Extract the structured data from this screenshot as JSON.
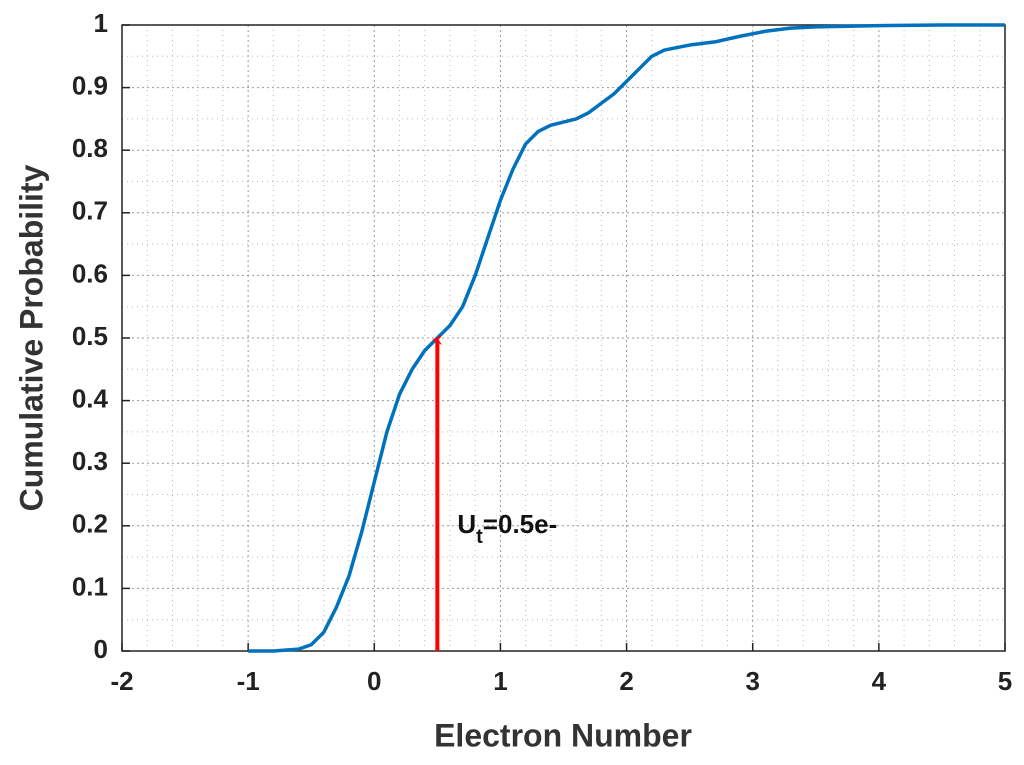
{
  "chart_data": {
    "type": "line",
    "xlabel": "Electron Number",
    "ylabel": "Cumulative Probability",
    "xlim": [
      -2,
      5
    ],
    "ylim": [
      0,
      1
    ],
    "xticks": [
      -2,
      -1,
      0,
      1,
      2,
      3,
      4,
      5
    ],
    "yticks": [
      0,
      0.1,
      0.2,
      0.3,
      0.4,
      0.5,
      0.6,
      0.7,
      0.8,
      0.9,
      1
    ],
    "grid": true,
    "minor_grid": true,
    "x": [
      -1,
      -0.8,
      -0.6,
      -0.5,
      -0.4,
      -0.3,
      -0.2,
      -0.1,
      0,
      0.1,
      0.2,
      0.3,
      0.4,
      0.5,
      0.6,
      0.7,
      0.8,
      0.9,
      1.0,
      1.1,
      1.2,
      1.3,
      1.4,
      1.5,
      1.6,
      1.7,
      1.8,
      1.9,
      2.0,
      2.1,
      2.2,
      2.3,
      2.5,
      2.7,
      2.9,
      3.1,
      3.3,
      3.5,
      4.0,
      4.5,
      5.0
    ],
    "series": [
      {
        "color": "#0072bd",
        "values": [
          0,
          0,
          0.003,
          0.01,
          0.03,
          0.07,
          0.12,
          0.19,
          0.27,
          0.35,
          0.41,
          0.45,
          0.48,
          0.5,
          0.52,
          0.55,
          0.6,
          0.66,
          0.72,
          0.77,
          0.81,
          0.83,
          0.84,
          0.845,
          0.85,
          0.86,
          0.875,
          0.89,
          0.91,
          0.93,
          0.95,
          0.96,
          0.968,
          0.973,
          0.982,
          0.99,
          0.995,
          0.997,
          0.999,
          1.0,
          1.0
        ]
      }
    ],
    "annotation": {
      "text": [
        "U",
        "t",
        "=0.5e-"
      ],
      "x": 0.5,
      "y_start": 0,
      "y_end": 0.5,
      "color": "#ff0000"
    }
  }
}
